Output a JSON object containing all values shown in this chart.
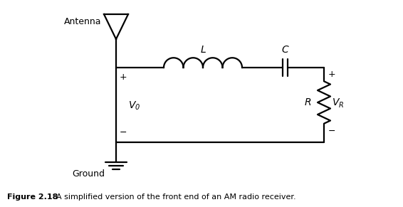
{
  "figure_label": "Figure 2.18",
  "figure_caption": "  A simplified version of the front end of an AM radio receiver.",
  "background_color": "#ffffff",
  "line_color": "#000000",
  "line_width": 1.6,
  "figsize": [
    5.66,
    2.91
  ],
  "dpi": 100,
  "labels": {
    "antenna": "Antenna",
    "L": "L",
    "C": "C",
    "R": "R",
    "VR": "V",
    "VR_sub": "R",
    "V0": "V",
    "V0_sub": "0",
    "Ground": "Ground",
    "plus_left": "+",
    "minus_left": "−",
    "plus_right": "+",
    "minus_right": "−"
  }
}
